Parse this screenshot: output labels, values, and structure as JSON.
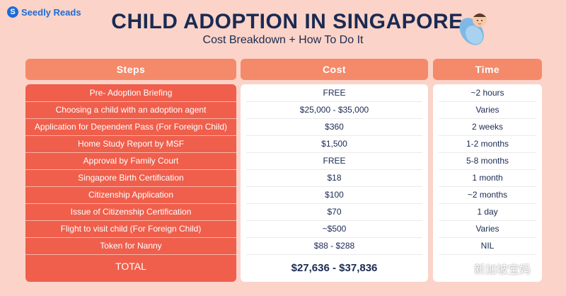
{
  "brand": {
    "logo_text": "Seedly Reads"
  },
  "header": {
    "title": "CHILD ADOPTION IN SINGAPORE",
    "subtitle": "Cost Breakdown + How To Do It"
  },
  "table": {
    "columns": [
      "Steps",
      "Cost",
      "Time"
    ],
    "rows": [
      {
        "step": "Pre- Adoption Briefing",
        "cost": "FREE",
        "time": "~2 hours"
      },
      {
        "step": "Choosing a child with an adoption agent",
        "cost": "$25,000 - $35,000",
        "time": "Varies"
      },
      {
        "step": "Application for Dependent Pass (For Foreign Child)",
        "cost": "$360",
        "time": "2 weeks"
      },
      {
        "step": "Home Study Report by MSF",
        "cost": "$1,500",
        "time": "1-2 months"
      },
      {
        "step": "Approval by Family Court",
        "cost": "FREE",
        "time": "5-8 months"
      },
      {
        "step": "Singapore Birth Certification",
        "cost": "$18",
        "time": "1 month"
      },
      {
        "step": "Citizenship Application",
        "cost": "$100",
        "time": "~2 months"
      },
      {
        "step": "Issue of Citizenship Certification",
        "cost": "$70",
        "time": "1 day"
      },
      {
        "step": "Flight to visit child (For Foreign Child)",
        "cost": "~$500",
        "time": "Varies"
      },
      {
        "step": "Token for Nanny",
        "cost": "$88 - $288",
        "time": "NIL"
      }
    ],
    "total": {
      "label": "TOTAL",
      "cost": "$27,636 - $37,836"
    }
  },
  "watermark": {
    "text": "新加坡宝妈"
  },
  "colors": {
    "background": "#fbd3c8",
    "header_cell": "#f48a6a",
    "steps_column": "#ef5f4c",
    "title_text": "#1a2a52",
    "brand": "#1d6bd6"
  },
  "icons": [
    "seedly-logo-icon",
    "swaddled-baby-icon",
    "wechat-icon"
  ]
}
